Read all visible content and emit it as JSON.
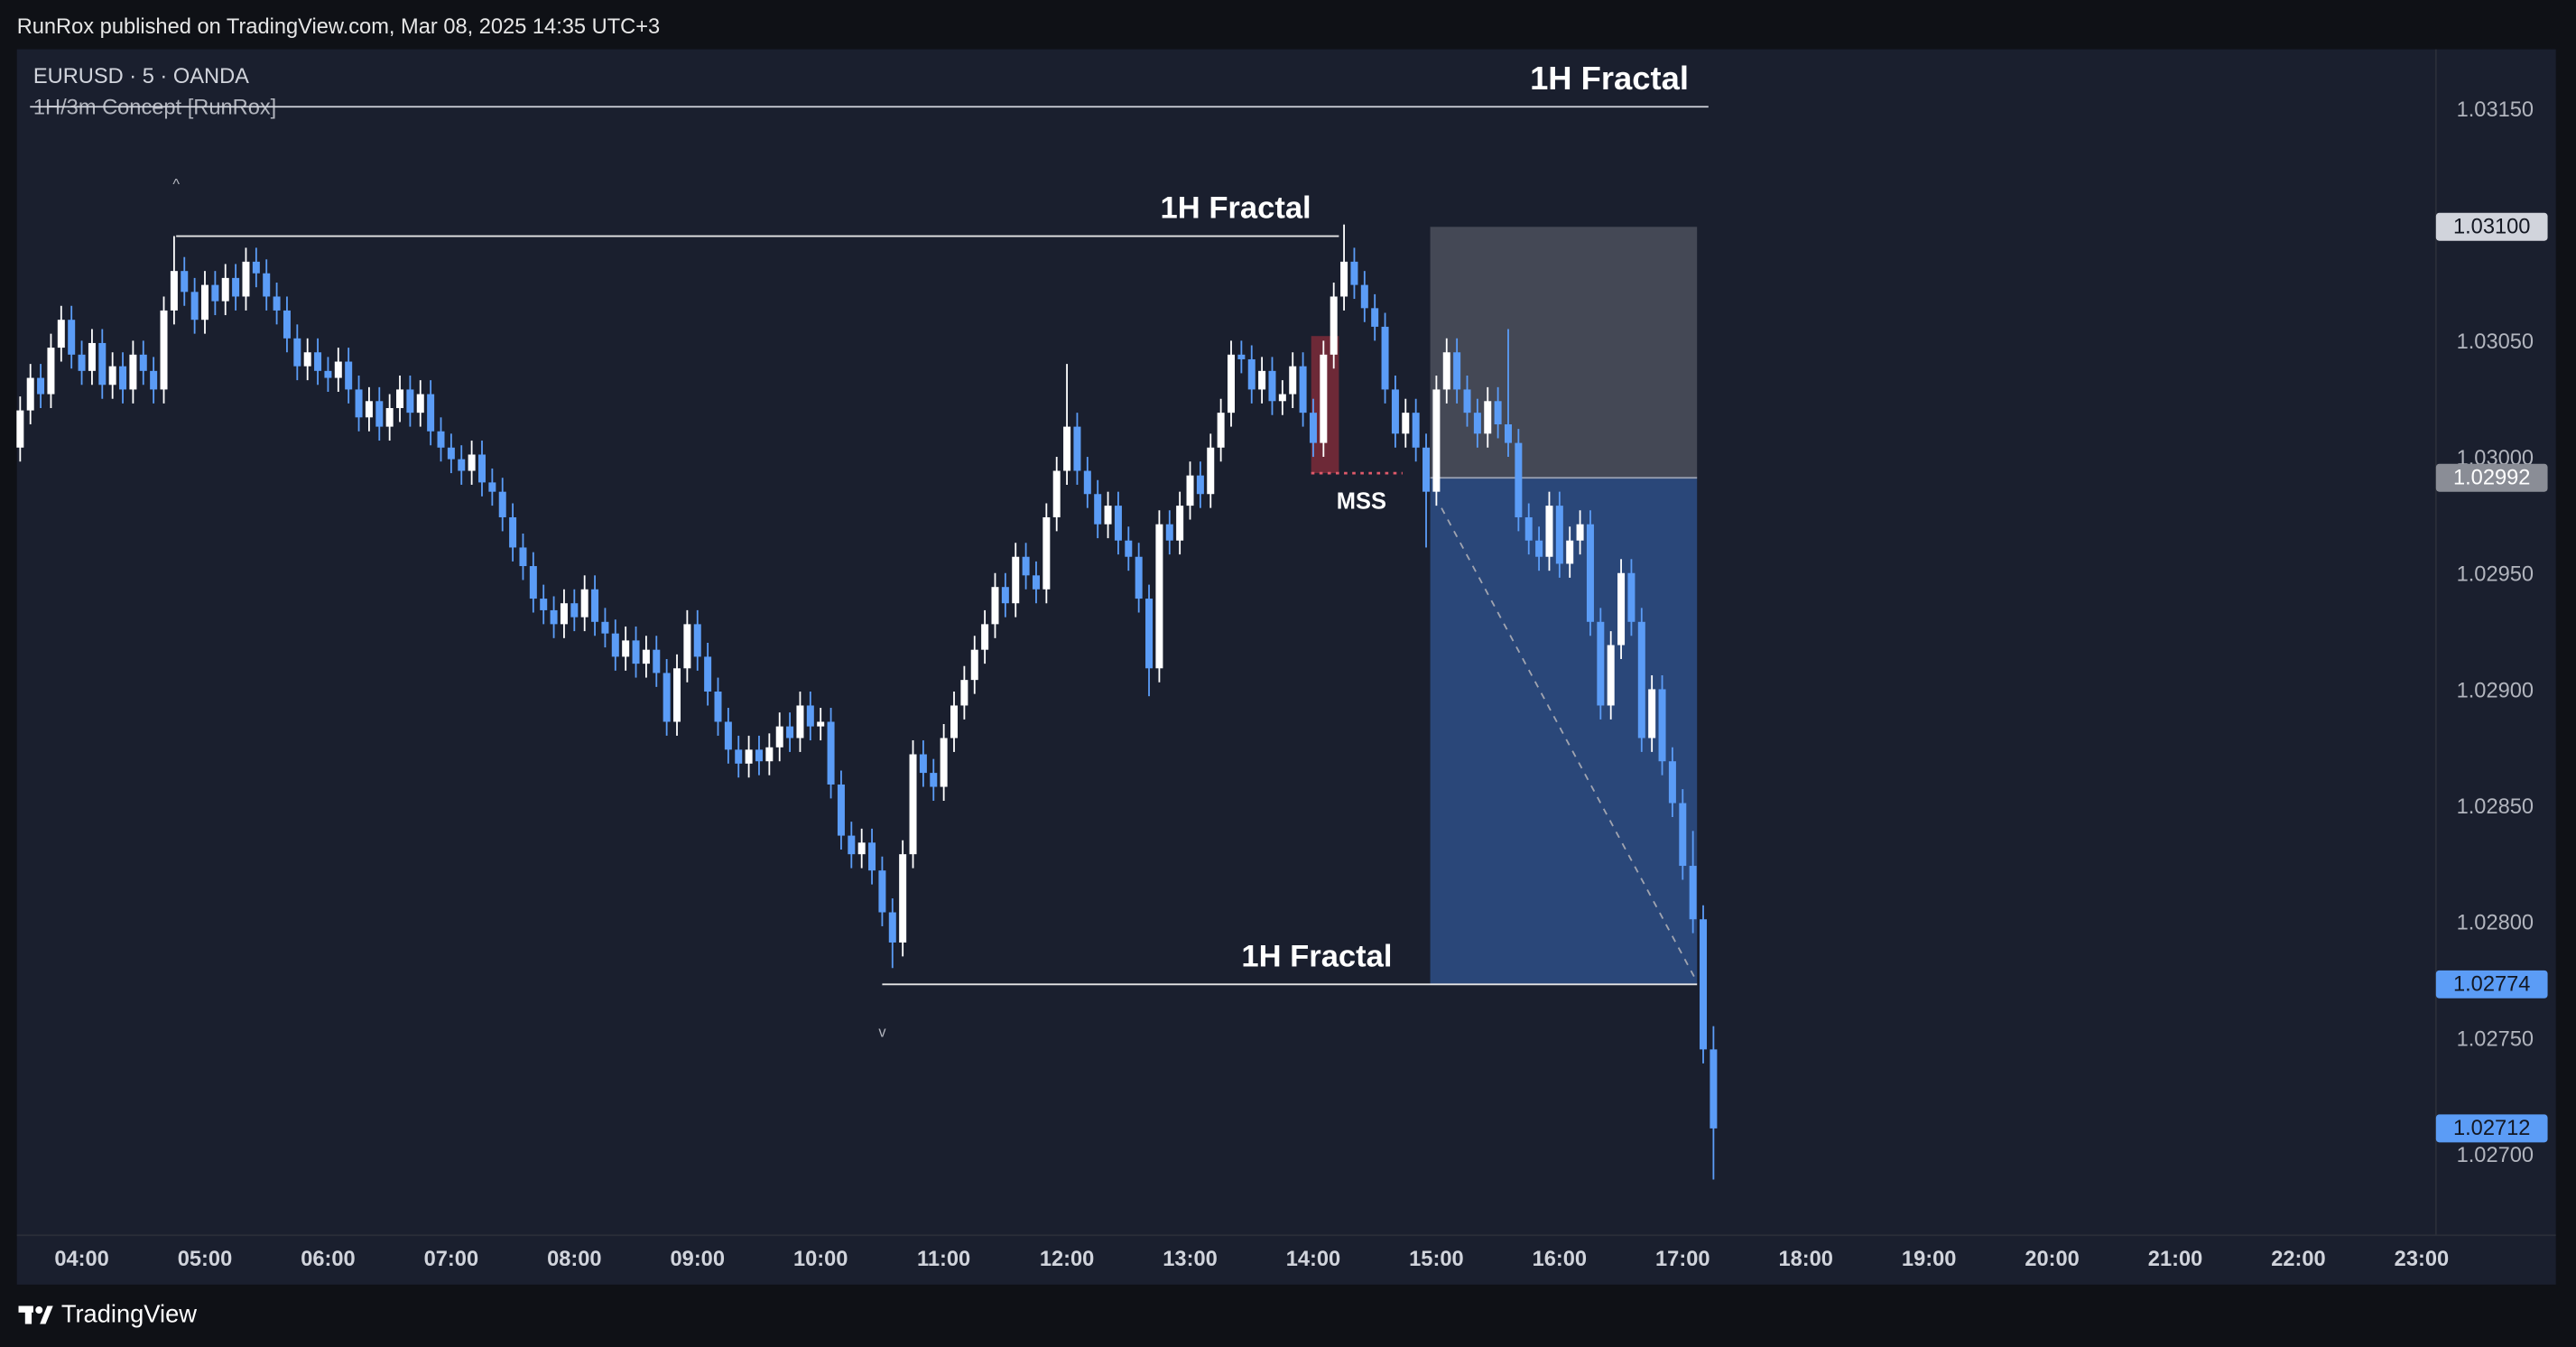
{
  "header": {
    "text": "RunRox published on TradingView.com, Mar 08, 2025 14:35 UTC+3"
  },
  "footer": {
    "brand": "TradingView"
  },
  "chart_data": {
    "type": "candlestick",
    "symbol": "EURUSD · 5 · OANDA",
    "indicator": "1H/3m Concept [RunRox]",
    "indicator_label": "1H Fractal",
    "up_color": "#ffffff",
    "down_color": "#5b9cf6",
    "xlim": [
      -0.32,
      235.4
    ],
    "ylim": [
      1.02666,
      1.03175
    ],
    "xticks": [
      {
        "value": 6,
        "label": "04:00"
      },
      {
        "value": 18,
        "label": "05:00"
      },
      {
        "value": 30,
        "label": "06:00"
      },
      {
        "value": 42,
        "label": "07:00"
      },
      {
        "value": 54,
        "label": "08:00"
      },
      {
        "value": 66,
        "label": "09:00"
      },
      {
        "value": 78,
        "label": "10:00"
      },
      {
        "value": 90,
        "label": "11:00"
      },
      {
        "value": 102,
        "label": "12:00"
      },
      {
        "value": 114,
        "label": "13:00"
      },
      {
        "value": 126,
        "label": "14:00"
      },
      {
        "value": 138,
        "label": "15:00"
      },
      {
        "value": 150,
        "label": "16:00"
      },
      {
        "value": 162,
        "label": "17:00"
      },
      {
        "value": 174,
        "label": "18:00"
      },
      {
        "value": 186,
        "label": "19:00"
      },
      {
        "value": 198,
        "label": "20:00"
      },
      {
        "value": 210,
        "label": "21:00"
      },
      {
        "value": 222,
        "label": "22:00"
      },
      {
        "value": 234,
        "label": "23:00"
      }
    ],
    "yticks": [
      {
        "value": 1.0315,
        "label": "1.03150"
      },
      {
        "value": 1.0305,
        "label": "1.03050"
      },
      {
        "value": 1.03,
        "label": "1.03000"
      },
      {
        "value": 1.0295,
        "label": "1.02950"
      },
      {
        "value": 1.029,
        "label": "1.02900"
      },
      {
        "value": 1.0285,
        "label": "1.02850"
      },
      {
        "value": 1.028,
        "label": "1.02800"
      },
      {
        "value": 1.0275,
        "label": "1.02750"
      },
      {
        "value": 1.027,
        "label": "1.02700"
      }
    ],
    "price_labels": [
      {
        "value": 1.031,
        "label": "1.03100",
        "color": "#d1d4dc",
        "text_color": "#131722"
      },
      {
        "value": 1.02992,
        "label": "1.02992",
        "color": "#8a8d96",
        "text_color": "#ffffff"
      },
      {
        "value": 1.02774,
        "label": "1.02774",
        "color": "#5b9cf6",
        "text_color": "#131722"
      },
      {
        "value": 1.02712,
        "label": "1.02712",
        "color": "#5b9cf6",
        "text_color": "#131722"
      }
    ],
    "open": [
      1.03005,
      1.03021,
      1.03035,
      1.03028,
      1.03048,
      1.0306,
      1.03045,
      1.03038,
      1.0305,
      1.03032,
      1.0304,
      1.0303,
      1.03045,
      1.03038,
      1.0303,
      1.03064,
      1.03081,
      1.03072,
      1.0306,
      1.03075,
      1.03068,
      1.03078,
      1.0307,
      1.03085,
      1.0308,
      1.0307,
      1.03064,
      1.03052,
      1.0304,
      1.03046,
      1.03038,
      1.03035,
      1.03042,
      1.0303,
      1.03018,
      1.03025,
      1.03014,
      1.03022,
      1.0303,
      1.0302,
      1.03028,
      1.03012,
      1.03005,
      1.03,
      1.02995,
      1.03002,
      1.0299,
      1.02986,
      1.02975,
      1.02962,
      1.02954,
      1.0294,
      1.02935,
      1.02929,
      1.02938,
      1.02932,
      1.02944,
      1.0293,
      1.02925,
      1.02915,
      1.02922,
      1.02912,
      1.02918,
      1.02908,
      1.02887,
      1.0291,
      1.02929,
      1.02915,
      1.029,
      1.02887,
      1.02875,
      1.02869,
      1.02875,
      1.0287,
      1.02876,
      1.02885,
      1.0288,
      1.02894,
      1.02885,
      1.02887,
      1.0286,
      1.02838,
      1.0283,
      1.02835,
      1.02823,
      1.02805,
      1.02792,
      1.0283,
      1.02873,
      1.02865,
      1.02859,
      1.0288,
      1.02894,
      1.02905,
      1.02918,
      1.02929,
      1.02945,
      1.02938,
      1.02958,
      1.0295,
      1.02944,
      1.02975,
      1.02995,
      1.03014,
      1.02995,
      1.02985,
      1.02972,
      1.0298,
      1.02965,
      1.02958,
      1.0294,
      1.0291,
      1.02972,
      1.02965,
      1.0298,
      1.02993,
      1.02985,
      1.03005,
      1.0302,
      1.03045,
      1.03043,
      1.0303,
      1.03038,
      1.03025,
      1.03028,
      1.0304,
      1.0302,
      1.03007,
      1.03045,
      1.0307,
      1.03085,
      1.03075,
      1.03065,
      1.03057,
      1.0303,
      1.03011,
      1.0302,
      1.03005,
      1.02986,
      1.0303,
      1.03046,
      1.0303,
      1.0302,
      1.03011,
      1.03025,
      1.03015,
      1.03007,
      1.02975,
      1.02965,
      1.02958,
      1.0298,
      1.02955,
      1.02965,
      1.02972,
      1.0293,
      1.02894,
      1.0292,
      1.02951,
      1.0293,
      1.0288,
      1.02901,
      1.0287,
      1.02852,
      1.02825,
      1.02802,
      1.02746
    ],
    "high": [
      1.03027,
      1.03041,
      1.03041,
      1.03054,
      1.03066,
      1.03066,
      1.03051,
      1.03056,
      1.03056,
      1.03046,
      1.03046,
      1.03051,
      1.03051,
      1.03044,
      1.0307,
      1.03096,
      1.03087,
      1.03078,
      1.03081,
      1.03081,
      1.03084,
      1.03084,
      1.03091,
      1.03091,
      1.03086,
      1.03076,
      1.0307,
      1.03058,
      1.03052,
      1.03052,
      1.03044,
      1.03048,
      1.03048,
      1.03036,
      1.03031,
      1.03031,
      1.03028,
      1.03036,
      1.03036,
      1.03034,
      1.03034,
      1.03018,
      1.03011,
      1.03006,
      1.03008,
      1.03008,
      1.02996,
      1.02992,
      1.02981,
      1.02968,
      1.0296,
      1.02946,
      1.02941,
      1.02944,
      1.02944,
      1.0295,
      1.0295,
      1.02936,
      1.02931,
      1.02928,
      1.02928,
      1.02924,
      1.02924,
      1.02914,
      1.02916,
      1.02935,
      1.02935,
      1.02921,
      1.02906,
      1.02893,
      1.02881,
      1.02881,
      1.02881,
      1.02882,
      1.02891,
      1.02891,
      1.029,
      1.029,
      1.02893,
      1.02893,
      1.02866,
      1.02844,
      1.02841,
      1.02841,
      1.02829,
      1.02811,
      1.02836,
      1.02879,
      1.02879,
      1.02871,
      1.02886,
      1.029,
      1.02911,
      1.02924,
      1.02935,
      1.02951,
      1.02951,
      1.02964,
      1.02964,
      1.02956,
      1.02981,
      1.03001,
      1.03041,
      1.0302,
      1.03001,
      1.02991,
      1.02986,
      1.02986,
      1.02971,
      1.02964,
      1.02946,
      1.02978,
      1.02978,
      1.02986,
      1.02999,
      1.02999,
      1.03011,
      1.03026,
      1.03051,
      1.03051,
      1.03049,
      1.03044,
      1.03044,
      1.03034,
      1.03046,
      1.03046,
      1.03026,
      1.03051,
      1.03076,
      1.03101,
      1.03091,
      1.03081,
      1.03071,
      1.03063,
      1.03036,
      1.03026,
      1.03026,
      1.03011,
      1.03036,
      1.03052,
      1.03052,
      1.03036,
      1.03026,
      1.03031,
      1.03031,
      1.03056,
      1.03013,
      1.02981,
      1.02971,
      1.02986,
      1.02986,
      1.02971,
      1.02978,
      1.02978,
      1.02936,
      1.02926,
      1.02957,
      1.02957,
      1.02936,
      1.02907,
      1.02907,
      1.02876,
      1.02858,
      1.0284,
      1.02808,
      1.02756
    ],
    "low": [
      1.02999,
      1.03015,
      1.03022,
      1.03022,
      1.03042,
      1.03039,
      1.03032,
      1.03032,
      1.03026,
      1.03026,
      1.03024,
      1.03024,
      1.03032,
      1.03024,
      1.03024,
      1.03058,
      1.03066,
      1.03054,
      1.03054,
      1.03062,
      1.03062,
      1.03064,
      1.03064,
      1.03074,
      1.03064,
      1.03058,
      1.03046,
      1.03034,
      1.03034,
      1.03032,
      1.03029,
      1.03029,
      1.03024,
      1.03012,
      1.03012,
      1.03008,
      1.03008,
      1.03016,
      1.03014,
      1.03014,
      1.03006,
      1.02999,
      1.02994,
      1.02989,
      1.02989,
      1.02984,
      1.0298,
      1.02969,
      1.02956,
      1.02948,
      1.02934,
      1.02929,
      1.02923,
      1.02923,
      1.02926,
      1.02926,
      1.02924,
      1.02919,
      1.02909,
      1.02909,
      1.02906,
      1.02906,
      1.02902,
      1.02881,
      1.02881,
      1.02904,
      1.02909,
      1.02894,
      1.02881,
      1.02869,
      1.02863,
      1.02863,
      1.02864,
      1.02864,
      1.0287,
      1.02874,
      1.02874,
      1.02879,
      1.02879,
      1.02854,
      1.02832,
      1.02824,
      1.02824,
      1.02817,
      1.02799,
      1.02781,
      1.02786,
      1.02824,
      1.02859,
      1.02853,
      1.02853,
      1.02874,
      1.02888,
      1.02899,
      1.02912,
      1.02923,
      1.02932,
      1.02932,
      1.02944,
      1.02938,
      1.02938,
      1.02969,
      1.02989,
      1.02989,
      1.02979,
      1.02966,
      1.02966,
      1.02959,
      1.02952,
      1.02934,
      1.02898,
      1.02904,
      1.02959,
      1.02959,
      1.02974,
      1.02979,
      1.02979,
      1.02999,
      1.03014,
      1.03037,
      1.03024,
      1.03024,
      1.03019,
      1.03019,
      1.03022,
      1.03014,
      1.03001,
      1.03001,
      1.03039,
      1.03064,
      1.03069,
      1.03059,
      1.03051,
      1.03024,
      1.03005,
      1.03005,
      1.02999,
      1.02962,
      1.0298,
      1.03024,
      1.03024,
      1.03014,
      1.03005,
      1.03005,
      1.03009,
      1.03001,
      1.02969,
      1.02959,
      1.02952,
      1.02952,
      1.02949,
      1.02949,
      1.02959,
      1.02924,
      1.02888,
      1.02888,
      1.02914,
      1.02924,
      1.02874,
      1.02874,
      1.02864,
      1.02846,
      1.02819,
      1.02796,
      1.0274,
      1.0269
    ],
    "close": [
      1.03021,
      1.03035,
      1.03028,
      1.03048,
      1.0306,
      1.03045,
      1.03038,
      1.0305,
      1.03032,
      1.0304,
      1.0303,
      1.03045,
      1.03038,
      1.0303,
      1.03064,
      1.03081,
      1.03072,
      1.0306,
      1.03075,
      1.03068,
      1.03078,
      1.0307,
      1.03085,
      1.0308,
      1.0307,
      1.03064,
      1.03052,
      1.0304,
      1.03046,
      1.03038,
      1.03035,
      1.03042,
      1.0303,
      1.03018,
      1.03025,
      1.03014,
      1.03022,
      1.0303,
      1.0302,
      1.03028,
      1.03012,
      1.03005,
      1.03,
      1.02995,
      1.03002,
      1.0299,
      1.02986,
      1.02975,
      1.02962,
      1.02954,
      1.0294,
      1.02935,
      1.02929,
      1.02938,
      1.02932,
      1.02944,
      1.0293,
      1.02925,
      1.02915,
      1.02922,
      1.02912,
      1.02918,
      1.02908,
      1.02887,
      1.0291,
      1.02929,
      1.02915,
      1.029,
      1.02887,
      1.02875,
      1.02869,
      1.02875,
      1.0287,
      1.02876,
      1.02885,
      1.0288,
      1.02894,
      1.02885,
      1.02887,
      1.0286,
      1.02838,
      1.0283,
      1.02835,
      1.02823,
      1.02805,
      1.02792,
      1.0283,
      1.02873,
      1.02865,
      1.02859,
      1.0288,
      1.02894,
      1.02905,
      1.02918,
      1.02929,
      1.02945,
      1.02938,
      1.02958,
      1.0295,
      1.02944,
      1.02975,
      1.02995,
      1.03014,
      1.02995,
      1.02985,
      1.02972,
      1.0298,
      1.02965,
      1.02958,
      1.0294,
      1.0291,
      1.02972,
      1.02965,
      1.0298,
      1.02993,
      1.02985,
      1.03005,
      1.0302,
      1.03045,
      1.03043,
      1.0303,
      1.03038,
      1.03025,
      1.03028,
      1.0304,
      1.0302,
      1.03007,
      1.03045,
      1.0307,
      1.03085,
      1.03075,
      1.03065,
      1.03057,
      1.0303,
      1.03011,
      1.0302,
      1.03005,
      1.02986,
      1.0303,
      1.03046,
      1.0303,
      1.0302,
      1.03011,
      1.03025,
      1.03015,
      1.03007,
      1.02975,
      1.02965,
      1.02958,
      1.0298,
      1.02955,
      1.02965,
      1.02972,
      1.0293,
      1.02894,
      1.0292,
      1.02951,
      1.0293,
      1.0288,
      1.02901,
      1.0287,
      1.02852,
      1.02825,
      1.02802,
      1.02746,
      1.02712
    ],
    "position": {
      "x": [
        137.4,
        163.4
      ],
      "stop": 1.031,
      "entry": 1.02992,
      "target": 1.02774
    },
    "trend_line": {
      "x": [
        138.5,
        163.4
      ],
      "y": [
        1.02979,
        1.02775
      ]
    },
    "mss_box": {
      "x": [
        125.8,
        128.5
      ],
      "y": [
        1.03053,
        1.02994
      ]
    },
    "levels": [
      {
        "text": "1H Fractal",
        "price": 1.03096,
        "x": [
          15.2,
          128.5
        ],
        "label_x": 125.8
      },
      {
        "text": "1H Fractal",
        "price": 1.02774,
        "x": [
          84,
          163.4
        ],
        "label_x": 133.7
      },
      {
        "text": "MSS",
        "price": 1.02994,
        "x": [
          125.8,
          134.7
        ],
        "label_x": 130.7
      }
    ],
    "markers": [
      {
        "text": "^",
        "x": 15.2,
        "price": 1.03118
      },
      {
        "text": "v",
        "x": 84,
        "price": 1.02753
      }
    ]
  }
}
